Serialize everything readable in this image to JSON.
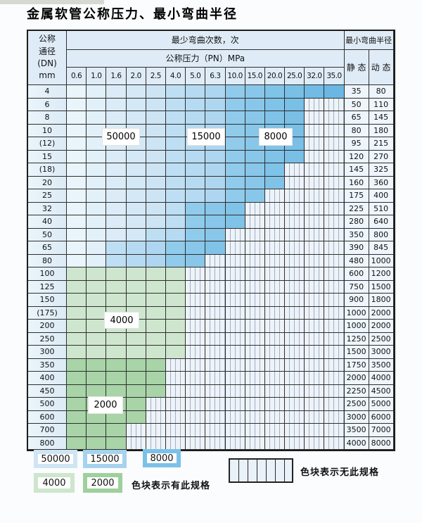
{
  "page": {
    "title": "金属软管公称压力、最小弯曲半径"
  },
  "table": {
    "header": {
      "dn_lines": [
        "公称",
        "通径",
        "(DN)",
        "mm"
      ],
      "cycles_label": "最少弯曲次数，次",
      "pressure_label": "公称压力（PN）MPa",
      "pressure_columns": [
        "0.6",
        "1.0",
        "1.6",
        "2.0",
        "2.5",
        "4.0",
        "5.0",
        "6.3",
        "10.0",
        "15.0",
        "20.0",
        "25.0",
        "32.0",
        "35.0"
      ],
      "radius_label": "最小弯曲半径",
      "static_label": "静 态",
      "dynamic_label": "动 态"
    },
    "zone_labels": {
      "blue_light": "50000",
      "blue_mid": "15000",
      "blue_dark": "8000",
      "green_light": "4000",
      "green_dark": "2000"
    },
    "rows": [
      {
        "dn": "4",
        "band": "blue",
        "colored": 14,
        "mid": 5,
        "dark": 8,
        "static": "35",
        "dynamic": "80"
      },
      {
        "dn": "6",
        "band": "blue",
        "colored": 12,
        "mid": 5,
        "dark": 8,
        "static": "50",
        "dynamic": "110"
      },
      {
        "dn": "8",
        "band": "blue",
        "colored": 12,
        "mid": 5,
        "dark": 8,
        "static": "65",
        "dynamic": "145"
      },
      {
        "dn": "10",
        "band": "blue",
        "colored": 12,
        "mid": 5,
        "dark": 8,
        "static": "80",
        "dynamic": "180"
      },
      {
        "dn": "(12)",
        "band": "blue",
        "colored": 12,
        "mid": 5,
        "dark": 8,
        "static": "95",
        "dynamic": "215"
      },
      {
        "dn": "15",
        "band": "blue",
        "colored": 12,
        "mid": 5,
        "dark": 8,
        "static": "120",
        "dynamic": "270"
      },
      {
        "dn": "(18)",
        "band": "blue",
        "colored": 11,
        "mid": 5,
        "dark": 8,
        "static": "145",
        "dynamic": "325"
      },
      {
        "dn": "20",
        "band": "blue",
        "colored": 11,
        "mid": 5,
        "dark": 8,
        "static": "160",
        "dynamic": "360"
      },
      {
        "dn": "25",
        "band": "blue",
        "colored": 10,
        "mid": 5,
        "dark": 8,
        "static": "175",
        "dynamic": "400"
      },
      {
        "dn": "32",
        "band": "blue",
        "colored": 9,
        "mid": 5,
        "dark": 6,
        "static": "225",
        "dynamic": "510"
      },
      {
        "dn": "40",
        "band": "blue",
        "colored": 9,
        "mid": 5,
        "dark": 6,
        "static": "280",
        "dynamic": "640"
      },
      {
        "dn": "50",
        "band": "blue",
        "colored": 8,
        "mid": 4,
        "dark": 6,
        "static": "350",
        "dynamic": "800"
      },
      {
        "dn": "65",
        "band": "blue",
        "colored": 8,
        "mid": 2,
        "dark": 5,
        "static": "390",
        "dynamic": "845"
      },
      {
        "dn": "80",
        "band": "blue",
        "colored": 7,
        "mid": 2,
        "dark": 5,
        "static": "480",
        "dynamic": "1000"
      },
      {
        "dn": "100",
        "band": "green_light",
        "colored": 6,
        "static": "600",
        "dynamic": "1200"
      },
      {
        "dn": "125",
        "band": "green_light",
        "colored": 6,
        "static": "750",
        "dynamic": "1500"
      },
      {
        "dn": "150",
        "band": "green_light",
        "colored": 6,
        "static": "900",
        "dynamic": "1800"
      },
      {
        "dn": "(175)",
        "band": "green_light",
        "colored": 6,
        "static": "1000",
        "dynamic": "2000"
      },
      {
        "dn": "200",
        "band": "green_light",
        "colored": 6,
        "static": "1000",
        "dynamic": "2000"
      },
      {
        "dn": "250",
        "band": "green_light",
        "colored": 6,
        "static": "1250",
        "dynamic": "2500"
      },
      {
        "dn": "300",
        "band": "green_light",
        "colored": 6,
        "static": "1500",
        "dynamic": "3000"
      },
      {
        "dn": "350",
        "band": "green_dark",
        "colored": 5,
        "static": "1750",
        "dynamic": "3500"
      },
      {
        "dn": "400",
        "band": "green_dark",
        "colored": 5,
        "static": "2000",
        "dynamic": "4000"
      },
      {
        "dn": "450",
        "band": "green_dark",
        "colored": 5,
        "static": "2250",
        "dynamic": "4500"
      },
      {
        "dn": "500",
        "band": "green_dark",
        "colored": 4,
        "static": "2500",
        "dynamic": "5000"
      },
      {
        "dn": "600",
        "band": "green_dark",
        "colored": 4,
        "static": "3000",
        "dynamic": "6000"
      },
      {
        "dn": "700",
        "band": "green_dark",
        "colored": 3,
        "static": "3500",
        "dynamic": "7000"
      },
      {
        "dn": "800",
        "band": "green_dark",
        "colored": 3,
        "static": "4000",
        "dynamic": "8000"
      }
    ]
  },
  "legend": {
    "has_spec_text": "色块表示有此规格",
    "no_spec_text": "色块表示无此规格"
  },
  "colors": {
    "header_bg": "#dfecf7",
    "blue_light": "#cfe5f4",
    "blue_mid": "#a5d3ee",
    "blue_dark": "#7bc1e8",
    "green_light": "#cde6cd",
    "green_dark": "#9ed09e",
    "grid_line": "#2e2e2e"
  }
}
